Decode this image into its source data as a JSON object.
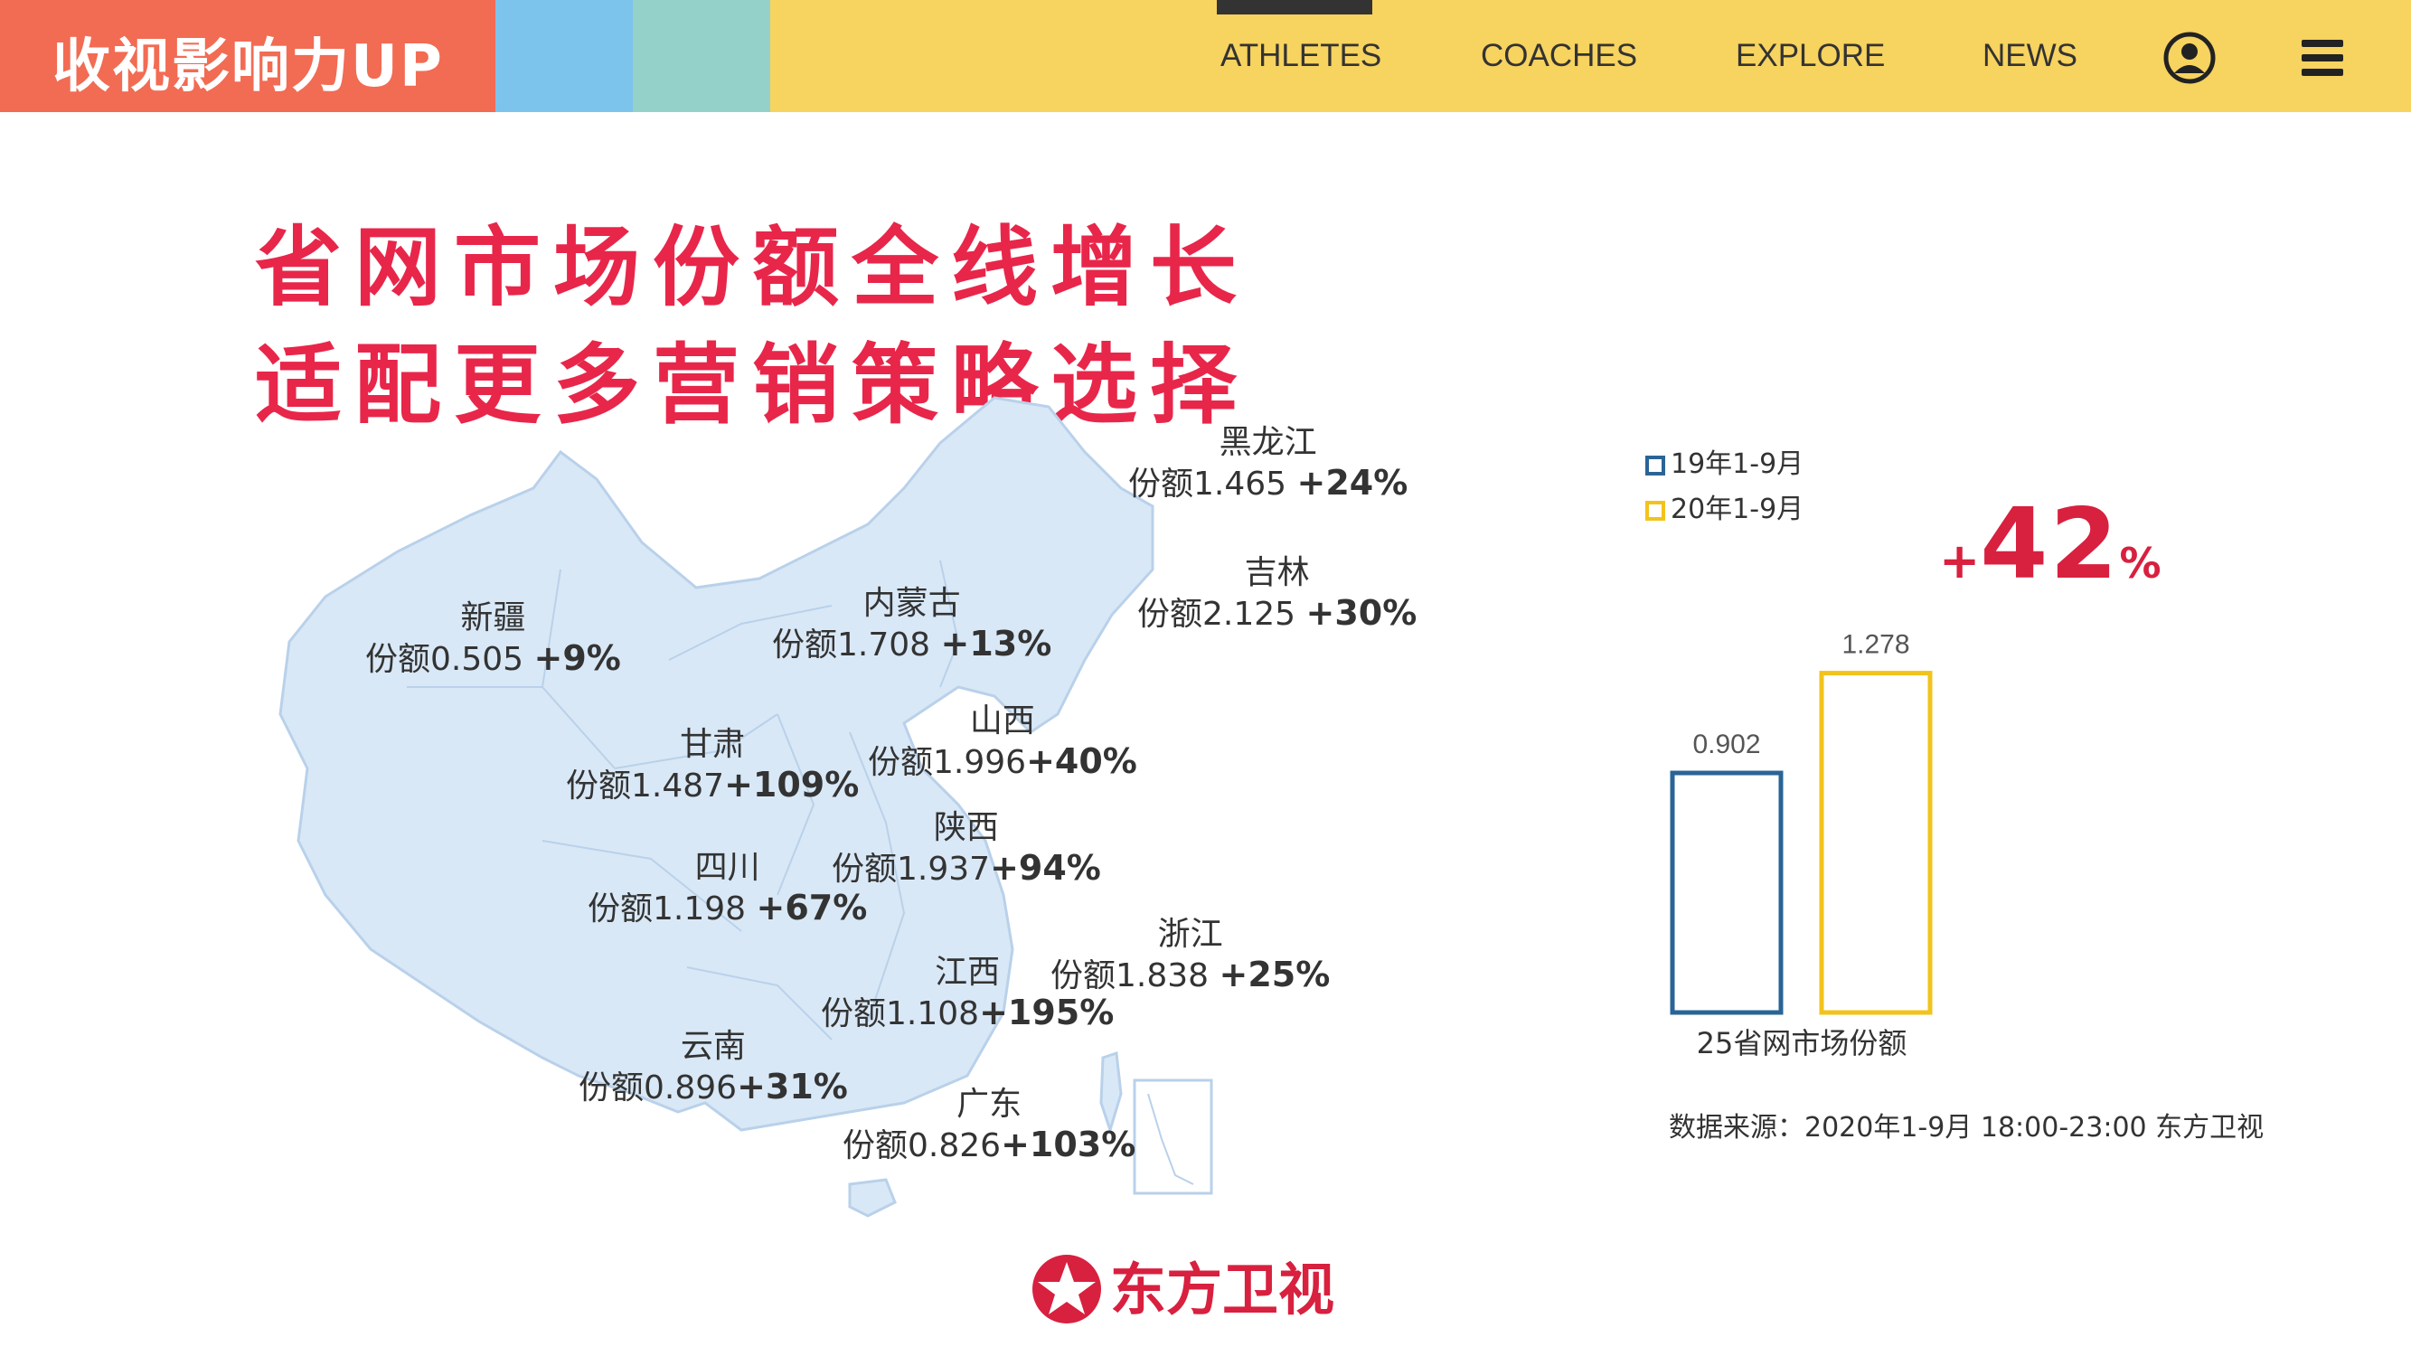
{
  "header": {
    "brand": "收视影响力UP",
    "nav": [
      "ATHLETES",
      "COACHES",
      "EXPLORE",
      "NEWS"
    ],
    "icons": [
      "user-icon",
      "menu-icon"
    ],
    "colors": {
      "brand_bg": "#f26b53",
      "block_blue": "#7dc4ec",
      "block_teal": "#94d2c9",
      "bar": "#f7d35f"
    }
  },
  "headline": {
    "line1": "省网市场份额全线增长",
    "line2": "适配更多营销策略选择"
  },
  "provinces": [
    {
      "name": "黑龙江",
      "share": "份额1.465",
      "growth": "+24%"
    },
    {
      "name": "吉林",
      "share": "份额2.125",
      "growth": "+30%"
    },
    {
      "name": "内蒙古",
      "share": "份额1.708",
      "growth": "+13%"
    },
    {
      "name": "新疆",
      "share": "份额0.505",
      "growth": "+9%"
    },
    {
      "name": "山西",
      "share": "份额1.996",
      "growth": "+40%"
    },
    {
      "name": "甘肃",
      "share": "份额1.487",
      "growth": "+109%"
    },
    {
      "name": "陕西",
      "share": "份额1.937",
      "growth": "+94%"
    },
    {
      "name": "四川",
      "share": "份额1.198",
      "growth": "+67%"
    },
    {
      "name": "浙江",
      "share": "份额1.838",
      "growth": "+25%"
    },
    {
      "name": "江西",
      "share": "份额1.108",
      "growth": "+195%"
    },
    {
      "name": "云南",
      "share": "份额0.896",
      "growth": "+31%"
    },
    {
      "name": "广东",
      "share": "份额0.826",
      "growth": "+103%"
    }
  ],
  "chart_data": {
    "type": "bar",
    "categories": [
      "19年1-9月",
      "20年1-9月"
    ],
    "values": [
      0.902,
      1.278
    ],
    "value_labels": [
      "0.902",
      "1.278"
    ],
    "colors": [
      "#2a6496",
      "#f2c31b"
    ],
    "xlabel": "25省网市场份额",
    "legend": [
      "19年1-9月",
      "20年1-9月"
    ],
    "legend_position": "top-left",
    "growth": {
      "sign": "+",
      "number": "42",
      "unit": "%"
    }
  },
  "source": "数据来源：2020年1-9月   18:00-23:00   东方卫视",
  "logo": {
    "text": "东方卫视"
  }
}
